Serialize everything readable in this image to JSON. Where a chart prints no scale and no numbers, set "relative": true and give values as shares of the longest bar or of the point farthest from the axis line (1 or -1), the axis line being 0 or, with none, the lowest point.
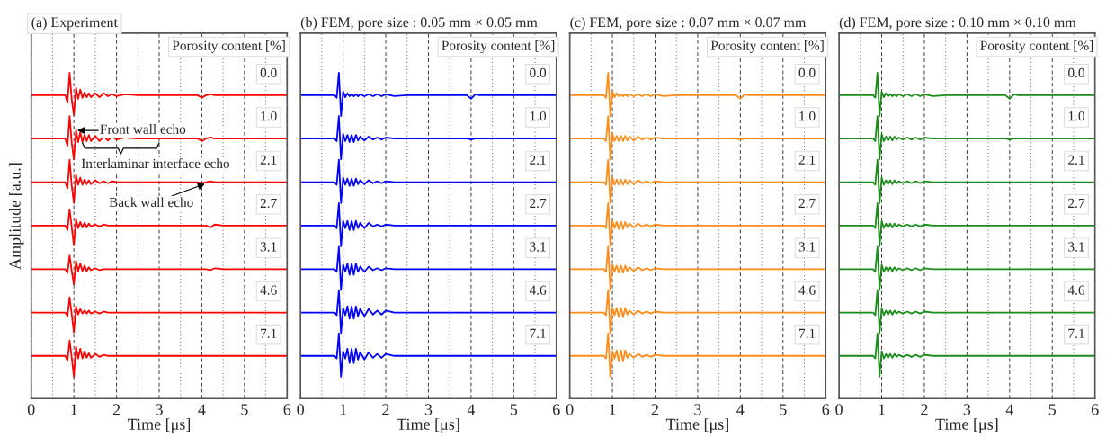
{
  "chart_data": [
    {
      "type": "line",
      "title": "(a) Experiment",
      "xlabel": "Time [μs]",
      "ylabel": "Amplitude [a.u.]",
      "legend_title": "Porosity content [%]",
      "relative": true,
      "xlim": [
        0,
        6
      ],
      "xticks": [
        0,
        1,
        2,
        3,
        4,
        5,
        6
      ],
      "grid": "x",
      "x": [
        0,
        0.8,
        0.85,
        0.9,
        0.95,
        1.0,
        1.05,
        1.1,
        1.15,
        1.2,
        1.25,
        1.3,
        1.35,
        1.4,
        1.5,
        1.6,
        1.7,
        1.8,
        1.9,
        2.0,
        2.2,
        2.5,
        3.0,
        3.9,
        4.0,
        4.1,
        4.2,
        4.3,
        4.5,
        6
      ],
      "annotations": [
        {
          "text": "Front wall echo",
          "x": 1.05,
          "y": 0.823
        },
        "Interlaminar interface echo",
        {
          "text": "Back wall echo",
          "x": 4.1,
          "y": 0.66
        }
      ],
      "series": [
        {
          "name": "0.0",
          "color": "#ff0000",
          "values": [
            0.931,
            0.931,
            0.909,
            1.0,
            0.917,
            0.87,
            0.953,
            0.92,
            0.948,
            0.923,
            0.939,
            0.925,
            0.937,
            0.925,
            0.937,
            0.925,
            0.937,
            0.928,
            0.934,
            0.928,
            0.934,
            0.931,
            0.931,
            0.931,
            0.923,
            0.931,
            0.934,
            0.931,
            0.931,
            0.931
          ]
        },
        {
          "name": "1.0",
          "color": "#ff0000",
          "values": [
            0.798,
            0.798,
            0.776,
            0.867,
            0.784,
            0.734,
            0.823,
            0.787,
            0.817,
            0.787,
            0.809,
            0.79,
            0.809,
            0.79,
            0.806,
            0.79,
            0.804,
            0.792,
            0.804,
            0.795,
            0.801,
            0.798,
            0.798,
            0.798,
            0.79,
            0.798,
            0.801,
            0.798,
            0.798,
            0.798
          ]
        },
        {
          "name": "2.1",
          "color": "#ff0000",
          "values": [
            0.664,
            0.664,
            0.645,
            0.733,
            0.653,
            0.6,
            0.686,
            0.656,
            0.678,
            0.656,
            0.672,
            0.658,
            0.67,
            0.658,
            0.67,
            0.661,
            0.667,
            0.661,
            0.667,
            0.664,
            0.664,
            0.664,
            0.664,
            0.664,
            0.661,
            0.664,
            0.667,
            0.664,
            0.664,
            0.664
          ]
        },
        {
          "name": "2.7",
          "color": "#ff0000",
          "values": [
            0.531,
            0.531,
            0.517,
            0.581,
            0.525,
            0.47,
            0.55,
            0.523,
            0.542,
            0.525,
            0.539,
            0.525,
            0.537,
            0.528,
            0.534,
            0.528,
            0.534,
            0.531,
            0.531,
            0.531,
            0.531,
            0.531,
            0.531,
            0.531,
            0.531,
            0.531,
            0.525,
            0.534,
            0.531,
            0.531
          ]
        },
        {
          "name": "3.1",
          "color": "#ff0000",
          "values": [
            0.397,
            0.397,
            0.386,
            0.439,
            0.391,
            0.35,
            0.422,
            0.391,
            0.414,
            0.391,
            0.408,
            0.391,
            0.403,
            0.394,
            0.4,
            0.394,
            0.397,
            0.397,
            0.397,
            0.397,
            0.397,
            0.397,
            0.397,
            0.397,
            0.397,
            0.397,
            0.394,
            0.4,
            0.397,
            0.397
          ]
        },
        {
          "name": "4.6",
          "color": "#ff0000",
          "values": [
            0.264,
            0.264,
            0.253,
            0.311,
            0.258,
            0.203,
            0.283,
            0.258,
            0.275,
            0.261,
            0.27,
            0.261,
            0.27,
            0.261,
            0.267,
            0.261,
            0.267,
            0.264,
            0.264,
            0.264,
            0.264,
            0.264,
            0.264,
            0.264,
            0.264,
            0.264,
            0.264,
            0.264,
            0.264,
            0.264
          ]
        },
        {
          "name": "7.1",
          "color": "#ff0000",
          "values": [
            0.131,
            0.131,
            0.117,
            0.178,
            0.125,
            0.067,
            0.159,
            0.123,
            0.153,
            0.123,
            0.145,
            0.125,
            0.139,
            0.125,
            0.137,
            0.128,
            0.134,
            0.131,
            0.131,
            0.131,
            0.131,
            0.131,
            0.131,
            0.131,
            0.131,
            0.131,
            0.131,
            0.131,
            0.131,
            0.131
          ]
        }
      ]
    },
    {
      "type": "line",
      "title": "(b) FEM, pore size : 0.05 mm × 0.05 mm",
      "xlabel": "Time [μs]",
      "legend_title": "Porosity content [%]",
      "relative": true,
      "xlim": [
        0,
        6
      ],
      "xticks": [
        0,
        1,
        2,
        3,
        4,
        5,
        6
      ],
      "grid": "x",
      "x": [
        0,
        0.8,
        0.85,
        0.9,
        0.95,
        1.0,
        1.05,
        1.1,
        1.15,
        1.2,
        1.25,
        1.3,
        1.35,
        1.4,
        1.5,
        1.6,
        1.7,
        1.8,
        1.9,
        2.0,
        2.2,
        2.5,
        3.0,
        3.9,
        4.0,
        4.1,
        4.2,
        4.3,
        4.5,
        6
      ],
      "series": [
        {
          "name": "0.0",
          "color": "#0000ff",
          "values": [
            0.931,
            0.931,
            0.923,
            1.0,
            0.867,
            0.942,
            0.925,
            0.937,
            0.928,
            0.934,
            0.928,
            0.934,
            0.928,
            0.934,
            0.928,
            0.934,
            0.928,
            0.934,
            0.928,
            0.934,
            0.928,
            0.931,
            0.931,
            0.931,
            0.92,
            0.934,
            0.931,
            0.931,
            0.931,
            0.931
          ]
        },
        {
          "name": "1.0",
          "color": "#0000ff",
          "values": [
            0.798,
            0.798,
            0.79,
            0.867,
            0.734,
            0.812,
            0.79,
            0.809,
            0.787,
            0.809,
            0.787,
            0.809,
            0.792,
            0.804,
            0.792,
            0.804,
            0.795,
            0.801,
            0.795,
            0.801,
            0.798,
            0.798,
            0.798,
            0.798,
            0.795,
            0.798,
            0.798,
            0.798,
            0.798,
            0.798
          ]
        },
        {
          "name": "2.1",
          "color": "#0000ff",
          "values": [
            0.664,
            0.664,
            0.656,
            0.733,
            0.6,
            0.678,
            0.656,
            0.675,
            0.653,
            0.675,
            0.653,
            0.675,
            0.658,
            0.67,
            0.658,
            0.67,
            0.661,
            0.667,
            0.661,
            0.667,
            0.664,
            0.664,
            0.664,
            0.664,
            0.664,
            0.664,
            0.664,
            0.664,
            0.664,
            0.664
          ]
        },
        {
          "name": "2.7",
          "color": "#0000ff",
          "values": [
            0.531,
            0.531,
            0.523,
            0.6,
            0.467,
            0.545,
            0.523,
            0.545,
            0.517,
            0.545,
            0.517,
            0.545,
            0.523,
            0.539,
            0.523,
            0.539,
            0.528,
            0.534,
            0.528,
            0.534,
            0.531,
            0.531,
            0.531,
            0.531,
            0.531,
            0.531,
            0.531,
            0.531,
            0.531,
            0.531
          ]
        },
        {
          "name": "3.1",
          "color": "#0000ff",
          "values": [
            0.397,
            0.397,
            0.389,
            0.466,
            0.333,
            0.411,
            0.389,
            0.414,
            0.38,
            0.414,
            0.38,
            0.414,
            0.389,
            0.405,
            0.389,
            0.405,
            0.394,
            0.4,
            0.394,
            0.4,
            0.397,
            0.397,
            0.397,
            0.397,
            0.397,
            0.397,
            0.397,
            0.397,
            0.397,
            0.397
          ]
        },
        {
          "name": "4.6",
          "color": "#0000ff",
          "values": [
            0.264,
            0.264,
            0.256,
            0.333,
            0.2,
            0.278,
            0.256,
            0.283,
            0.245,
            0.283,
            0.245,
            0.283,
            0.253,
            0.275,
            0.253,
            0.275,
            0.258,
            0.27,
            0.258,
            0.27,
            0.264,
            0.264,
            0.264,
            0.264,
            0.264,
            0.264,
            0.264,
            0.264,
            0.264,
            0.264
          ]
        },
        {
          "name": "7.1",
          "color": "#0000ff",
          "values": [
            0.131,
            0.131,
            0.123,
            0.2,
            0.067,
            0.145,
            0.123,
            0.153,
            0.109,
            0.153,
            0.109,
            0.153,
            0.12,
            0.142,
            0.12,
            0.142,
            0.125,
            0.137,
            0.125,
            0.137,
            0.131,
            0.131,
            0.131,
            0.131,
            0.131,
            0.131,
            0.131,
            0.131,
            0.131,
            0.131
          ]
        }
      ]
    },
    {
      "type": "line",
      "title": "(c) FEM, pore size : 0.07 mm × 0.07 mm",
      "xlabel": "Time [μs]",
      "legend_title": "Porosity content [%]",
      "relative": true,
      "xlim": [
        0,
        6
      ],
      "xticks": [
        0,
        1,
        2,
        3,
        4,
        5,
        6
      ],
      "grid": "x",
      "x": [
        0,
        0.8,
        0.85,
        0.9,
        0.95,
        1.0,
        1.05,
        1.1,
        1.15,
        1.2,
        1.25,
        1.3,
        1.35,
        1.4,
        1.5,
        1.6,
        1.7,
        1.8,
        1.9,
        2.0,
        2.2,
        2.5,
        3.0,
        3.9,
        4.0,
        4.1,
        4.2,
        4.3,
        4.5,
        6
      ],
      "series": [
        {
          "name": "0.0",
          "color": "#ff8c1a",
          "values": [
            0.931,
            0.931,
            0.923,
            1.0,
            0.867,
            0.942,
            0.925,
            0.937,
            0.928,
            0.934,
            0.928,
            0.934,
            0.928,
            0.934,
            0.928,
            0.934,
            0.928,
            0.934,
            0.928,
            0.934,
            0.928,
            0.931,
            0.931,
            0.931,
            0.92,
            0.934,
            0.931,
            0.931,
            0.931,
            0.931
          ]
        },
        {
          "name": "1.0",
          "color": "#ff8c1a",
          "values": [
            0.798,
            0.798,
            0.79,
            0.867,
            0.734,
            0.812,
            0.79,
            0.806,
            0.79,
            0.806,
            0.79,
            0.806,
            0.792,
            0.804,
            0.792,
            0.804,
            0.795,
            0.801,
            0.795,
            0.801,
            0.798,
            0.798,
            0.798,
            0.798,
            0.795,
            0.798,
            0.798,
            0.798,
            0.798,
            0.798
          ]
        },
        {
          "name": "2.1",
          "color": "#ff8c1a",
          "values": [
            0.664,
            0.664,
            0.656,
            0.733,
            0.6,
            0.678,
            0.656,
            0.672,
            0.656,
            0.672,
            0.656,
            0.672,
            0.658,
            0.67,
            0.658,
            0.67,
            0.661,
            0.667,
            0.661,
            0.667,
            0.664,
            0.664,
            0.664,
            0.664,
            0.664,
            0.664,
            0.664,
            0.664,
            0.664,
            0.664
          ]
        },
        {
          "name": "2.7",
          "color": "#ff8c1a",
          "values": [
            0.531,
            0.531,
            0.523,
            0.6,
            0.467,
            0.545,
            0.523,
            0.542,
            0.52,
            0.542,
            0.52,
            0.542,
            0.525,
            0.537,
            0.525,
            0.537,
            0.528,
            0.534,
            0.528,
            0.534,
            0.531,
            0.531,
            0.531,
            0.531,
            0.531,
            0.531,
            0.531,
            0.531,
            0.531,
            0.531
          ]
        },
        {
          "name": "3.1",
          "color": "#ff8c1a",
          "values": [
            0.397,
            0.397,
            0.389,
            0.466,
            0.333,
            0.411,
            0.389,
            0.408,
            0.386,
            0.408,
            0.386,
            0.408,
            0.391,
            0.403,
            0.391,
            0.403,
            0.394,
            0.4,
            0.394,
            0.4,
            0.397,
            0.397,
            0.397,
            0.397,
            0.397,
            0.397,
            0.397,
            0.397,
            0.397,
            0.397
          ]
        },
        {
          "name": "4.6",
          "color": "#ff8c1a",
          "values": [
            0.264,
            0.264,
            0.256,
            0.333,
            0.2,
            0.278,
            0.256,
            0.278,
            0.25,
            0.278,
            0.25,
            0.278,
            0.258,
            0.27,
            0.258,
            0.27,
            0.261,
            0.267,
            0.261,
            0.267,
            0.264,
            0.264,
            0.264,
            0.264,
            0.264,
            0.264,
            0.264,
            0.264,
            0.264,
            0.264
          ]
        },
        {
          "name": "7.1",
          "color": "#ff8c1a",
          "values": [
            0.131,
            0.131,
            0.123,
            0.2,
            0.067,
            0.145,
            0.123,
            0.148,
            0.114,
            0.148,
            0.114,
            0.148,
            0.125,
            0.137,
            0.125,
            0.137,
            0.128,
            0.134,
            0.128,
            0.134,
            0.131,
            0.131,
            0.131,
            0.131,
            0.131,
            0.131,
            0.131,
            0.131,
            0.131,
            0.131
          ]
        }
      ]
    },
    {
      "type": "line",
      "title": "(d) FEM, pore size : 0.10 mm × 0.10 mm",
      "xlabel": "Time [μs]",
      "legend_title": "Porosity content [%]",
      "relative": true,
      "xlim": [
        0,
        6
      ],
      "xticks": [
        0,
        1,
        2,
        3,
        4,
        5,
        6
      ],
      "grid": "x",
      "x": [
        0,
        0.8,
        0.85,
        0.9,
        0.95,
        1.0,
        1.05,
        1.1,
        1.15,
        1.2,
        1.25,
        1.3,
        1.35,
        1.4,
        1.5,
        1.6,
        1.7,
        1.8,
        1.9,
        2.0,
        2.2,
        2.5,
        3.0,
        3.9,
        4.0,
        4.1,
        4.2,
        4.3,
        4.5,
        6
      ],
      "series": [
        {
          "name": "0.0",
          "color": "#1a8c1a",
          "values": [
            0.931,
            0.931,
            0.923,
            1.0,
            0.867,
            0.942,
            0.925,
            0.937,
            0.928,
            0.934,
            0.928,
            0.934,
            0.928,
            0.934,
            0.928,
            0.934,
            0.928,
            0.934,
            0.928,
            0.934,
            0.928,
            0.931,
            0.931,
            0.931,
            0.92,
            0.934,
            0.931,
            0.931,
            0.931,
            0.931
          ]
        },
        {
          "name": "1.0",
          "color": "#1a8c1a",
          "values": [
            0.798,
            0.798,
            0.79,
            0.867,
            0.734,
            0.812,
            0.79,
            0.804,
            0.792,
            0.804,
            0.792,
            0.804,
            0.795,
            0.801,
            0.795,
            0.801,
            0.795,
            0.801,
            0.795,
            0.801,
            0.798,
            0.798,
            0.798,
            0.798,
            0.795,
            0.798,
            0.798,
            0.798,
            0.798,
            0.798
          ]
        },
        {
          "name": "2.1",
          "color": "#1a8c1a",
          "values": [
            0.664,
            0.664,
            0.656,
            0.733,
            0.6,
            0.678,
            0.656,
            0.67,
            0.658,
            0.67,
            0.658,
            0.67,
            0.661,
            0.667,
            0.661,
            0.667,
            0.661,
            0.667,
            0.661,
            0.667,
            0.664,
            0.664,
            0.664,
            0.664,
            0.664,
            0.664,
            0.664,
            0.664,
            0.664,
            0.664
          ]
        },
        {
          "name": "2.7",
          "color": "#1a8c1a",
          "values": [
            0.531,
            0.531,
            0.523,
            0.6,
            0.467,
            0.545,
            0.523,
            0.537,
            0.525,
            0.537,
            0.525,
            0.537,
            0.528,
            0.534,
            0.528,
            0.534,
            0.528,
            0.534,
            0.528,
            0.534,
            0.531,
            0.531,
            0.531,
            0.531,
            0.531,
            0.531,
            0.531,
            0.531,
            0.531,
            0.531
          ]
        },
        {
          "name": "3.1",
          "color": "#1a8c1a",
          "values": [
            0.397,
            0.397,
            0.389,
            0.466,
            0.333,
            0.411,
            0.389,
            0.403,
            0.391,
            0.403,
            0.391,
            0.403,
            0.394,
            0.4,
            0.394,
            0.4,
            0.394,
            0.4,
            0.394,
            0.4,
            0.397,
            0.397,
            0.397,
            0.397,
            0.397,
            0.397,
            0.397,
            0.397,
            0.397,
            0.397
          ]
        },
        {
          "name": "4.6",
          "color": "#1a8c1a",
          "values": [
            0.264,
            0.264,
            0.256,
            0.333,
            0.2,
            0.278,
            0.256,
            0.27,
            0.258,
            0.27,
            0.258,
            0.27,
            0.261,
            0.267,
            0.261,
            0.267,
            0.261,
            0.267,
            0.261,
            0.267,
            0.264,
            0.264,
            0.264,
            0.264,
            0.264,
            0.264,
            0.264,
            0.264,
            0.264,
            0.264
          ]
        },
        {
          "name": "7.1",
          "color": "#1a8c1a",
          "values": [
            0.131,
            0.131,
            0.123,
            0.2,
            0.067,
            0.145,
            0.123,
            0.137,
            0.125,
            0.137,
            0.125,
            0.137,
            0.128,
            0.134,
            0.128,
            0.134,
            0.128,
            0.134,
            0.128,
            0.134,
            0.131,
            0.131,
            0.131,
            0.131,
            0.131,
            0.131,
            0.131,
            0.131,
            0.131,
            0.131
          ]
        }
      ]
    }
  ]
}
